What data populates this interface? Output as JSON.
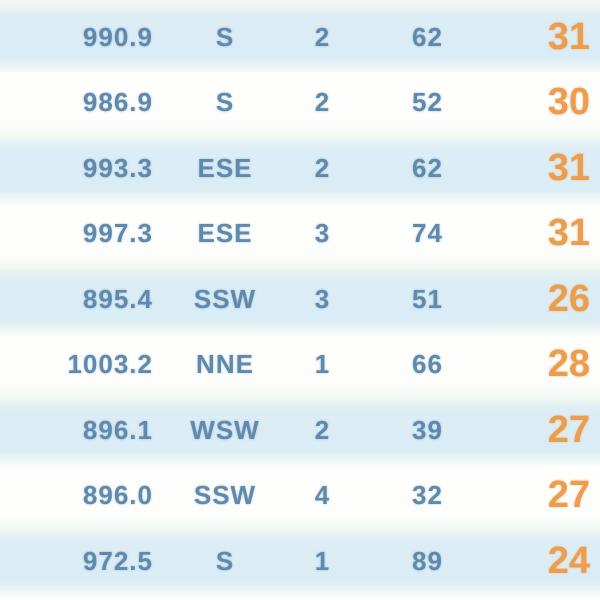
{
  "colors": {
    "row_blue": "#dcedf5",
    "row_white": "#fdfefd",
    "separator_pale": "#edf4ef",
    "text_blue": "#5f8aad",
    "text_orange": "#ec9d4e"
  },
  "table": {
    "rows": [
      {
        "pressure": "990.9",
        "wind_dir": "S",
        "wind_force": "2",
        "humidity": "62",
        "temp": "31"
      },
      {
        "pressure": "986.9",
        "wind_dir": "S",
        "wind_force": "2",
        "humidity": "52",
        "temp": "30"
      },
      {
        "pressure": "993.3",
        "wind_dir": "ESE",
        "wind_force": "2",
        "humidity": "62",
        "temp": "31"
      },
      {
        "pressure": "997.3",
        "wind_dir": "ESE",
        "wind_force": "3",
        "humidity": "74",
        "temp": "31"
      },
      {
        "pressure": "895.4",
        "wind_dir": "SSW",
        "wind_force": "3",
        "humidity": "51",
        "temp": "26"
      },
      {
        "pressure": "1003.2",
        "wind_dir": "NNE",
        "wind_force": "1",
        "humidity": "66",
        "temp": "28"
      },
      {
        "pressure": "896.1",
        "wind_dir": "WSW",
        "wind_force": "2",
        "humidity": "39",
        "temp": "27"
      },
      {
        "pressure": "896.0",
        "wind_dir": "SSW",
        "wind_force": "4",
        "humidity": "32",
        "temp": "27"
      },
      {
        "pressure": "972.5",
        "wind_dir": "S",
        "wind_force": "1",
        "humidity": "89",
        "temp": "24"
      }
    ]
  }
}
